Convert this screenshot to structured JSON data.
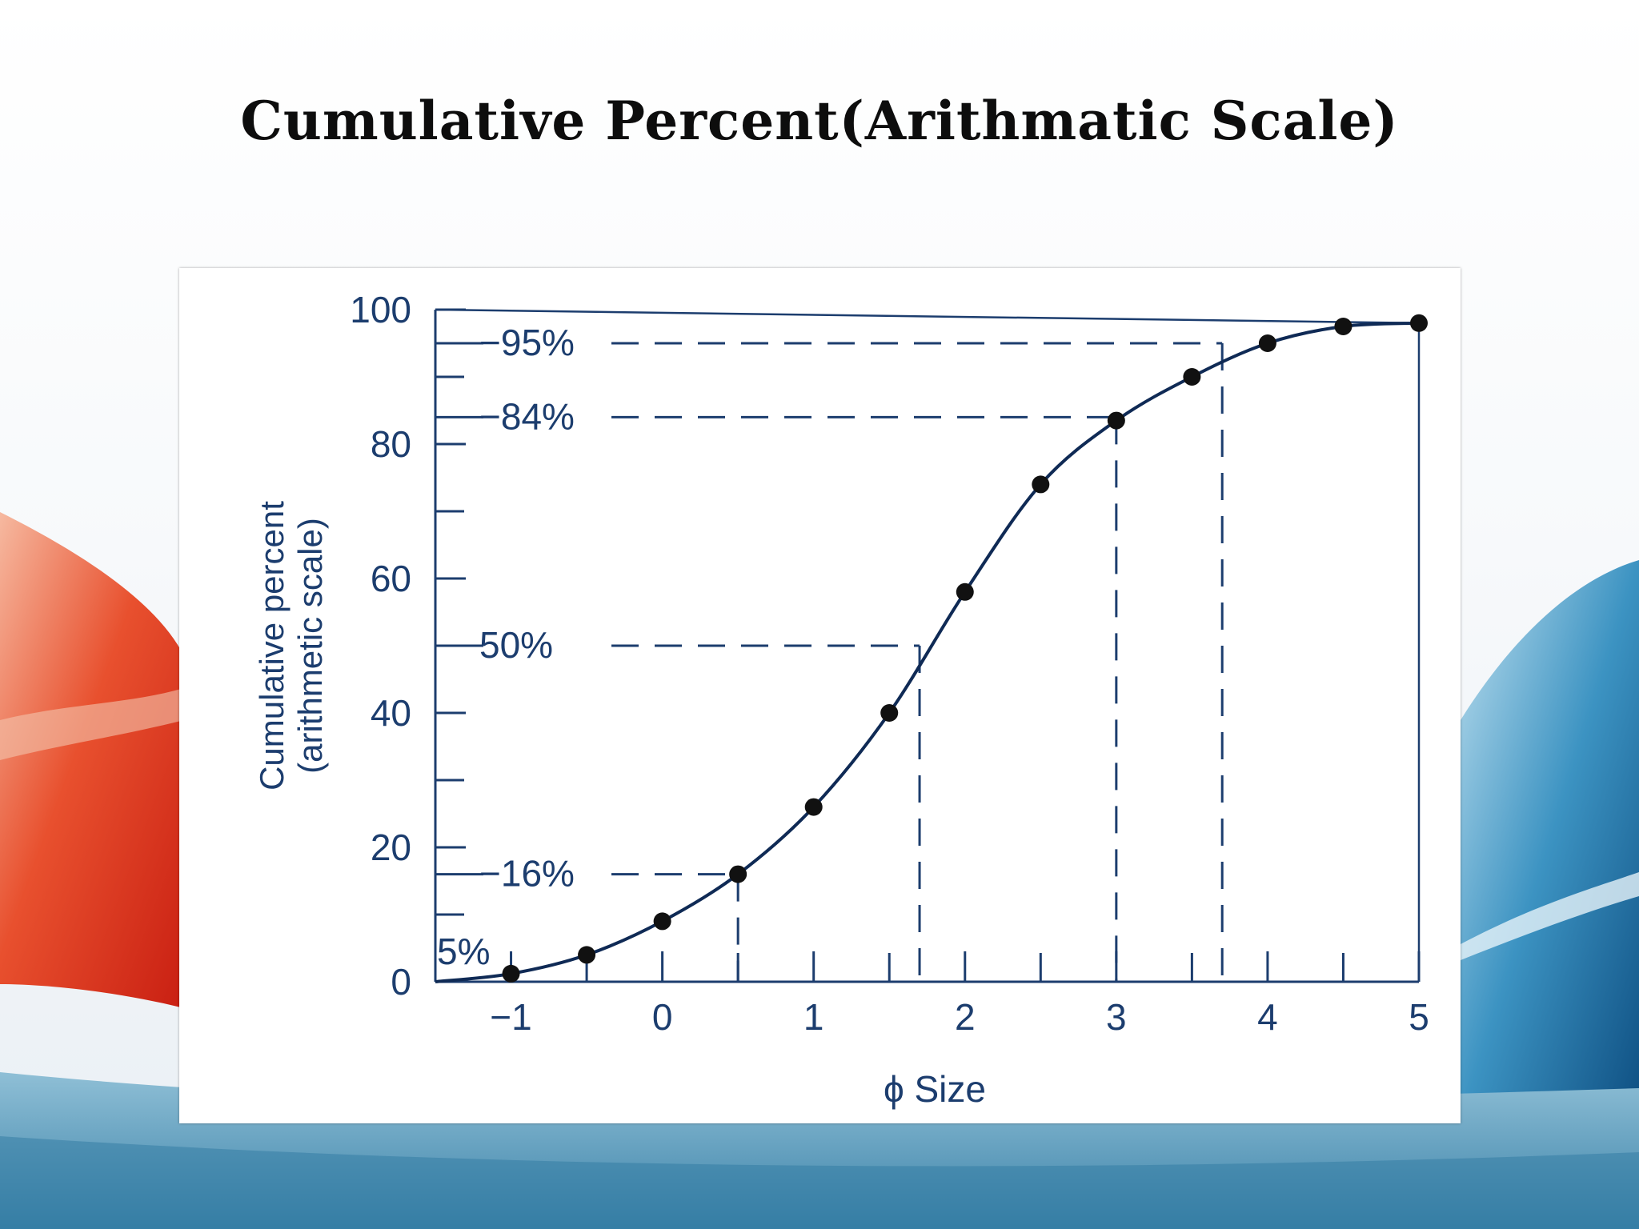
{
  "slide": {
    "title": "Cumulative Percent(Arithmatic Scale)"
  },
  "colors": {
    "ink": "#1c3d6e",
    "curve": "#0f2a55",
    "background_red": "#d8321c",
    "background_blue": "#1a6fa0"
  },
  "chart_data": {
    "type": "line",
    "title": "",
    "xlabel": "ϕ Size",
    "ylabel": "Cumulative percent (arithmetic scale)",
    "xlim": [
      -1.5,
      5
    ],
    "ylim": [
      0,
      100
    ],
    "x_ticks": [
      -1,
      0,
      1,
      2,
      3,
      4,
      5
    ],
    "x_tick_labels": [
      "−1",
      "0",
      "1",
      "2",
      "3",
      "4",
      "5"
    ],
    "y_ticks": [
      0,
      20,
      40,
      60,
      80,
      100
    ],
    "y_tick_labels": [
      "0",
      "20",
      "40",
      "60",
      "80",
      "100"
    ],
    "y_minor_ticks": [
      10,
      30,
      50,
      70,
      90,
      95
    ],
    "x_minor_ticks": [
      -0.5,
      0.5,
      1.5,
      2.5,
      3.5,
      4.5
    ],
    "grid": false,
    "series": [
      {
        "x": [
          -1.5,
          -1,
          -0.5,
          0,
          0.5,
          1,
          1.5,
          2,
          2.5,
          3,
          3.5,
          4,
          4.5,
          5
        ],
        "y": [
          0,
          1.2,
          4,
          9,
          16,
          26,
          40,
          58,
          74,
          83.5,
          90,
          95,
          97.5,
          98
        ]
      }
    ],
    "annotations": [
      {
        "label": "5%",
        "y": 5,
        "x": -1.15
      },
      {
        "label": "−16%",
        "y": 16,
        "x": 0.5
      },
      {
        "label": "50%",
        "y": 50,
        "x": 1.7
      },
      {
        "label": "−84%",
        "y": 84,
        "x": 3.0
      },
      {
        "label": "−95%",
        "y": 95,
        "x": 3.7
      }
    ]
  }
}
